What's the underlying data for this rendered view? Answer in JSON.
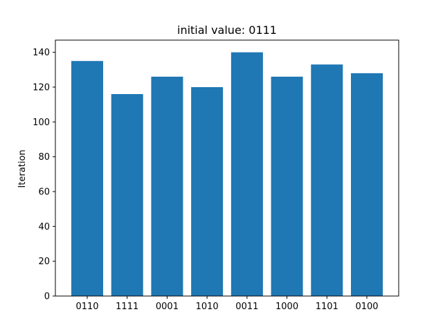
{
  "chart_data": {
    "type": "bar",
    "title": "initial value: 0111",
    "xlabel": "",
    "ylabel": "Iteration",
    "categories": [
      "0110",
      "1111",
      "0001",
      "1010",
      "0011",
      "1000",
      "1101",
      "0100"
    ],
    "values": [
      135,
      116,
      126,
      120,
      140,
      126,
      133,
      128
    ],
    "ylim": [
      0,
      147
    ],
    "yticks": [
      0,
      20,
      40,
      60,
      80,
      100,
      120,
      140
    ],
    "bar_color": "#1f77b4",
    "grid": false,
    "legend": "none"
  }
}
